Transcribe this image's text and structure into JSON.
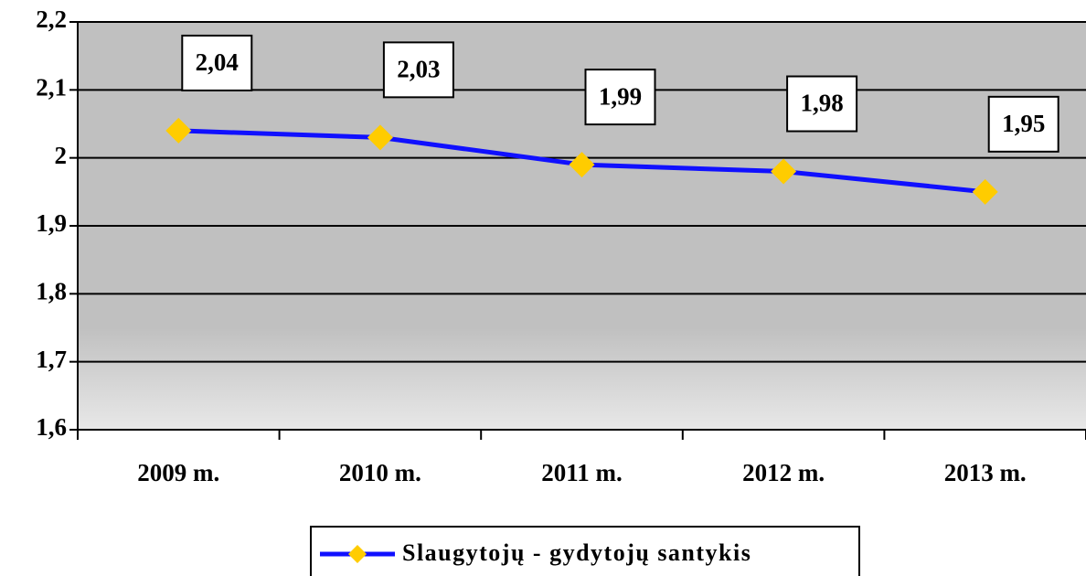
{
  "chart_data": {
    "type": "line",
    "categories": [
      "2009 m.",
      "2010 m.",
      "2011 m.",
      "2012 m.",
      "2013 m."
    ],
    "series": [
      {
        "name": "Slaugytojų - gydytojų santykis",
        "color": "#1010ff",
        "marker_color": "#ffcc00",
        "values": [
          2.04,
          2.03,
          1.99,
          1.98,
          1.95
        ],
        "value_labels": [
          "2,04",
          "2,03",
          "1,99",
          "1,98",
          "1,95"
        ]
      }
    ],
    "ylim": [
      1.6,
      2.2
    ],
    "yticks": [
      {
        "value": 1.6,
        "label": "1,6"
      },
      {
        "value": 1.7,
        "label": "1,7"
      },
      {
        "value": 1.8,
        "label": "1,8"
      },
      {
        "value": 1.9,
        "label": "1,9"
      },
      2,
      {
        "value": 2.1,
        "label": "2,1"
      },
      {
        "value": 2.2,
        "label": "2,2"
      }
    ],
    "grid": true,
    "legend": "bottom"
  }
}
